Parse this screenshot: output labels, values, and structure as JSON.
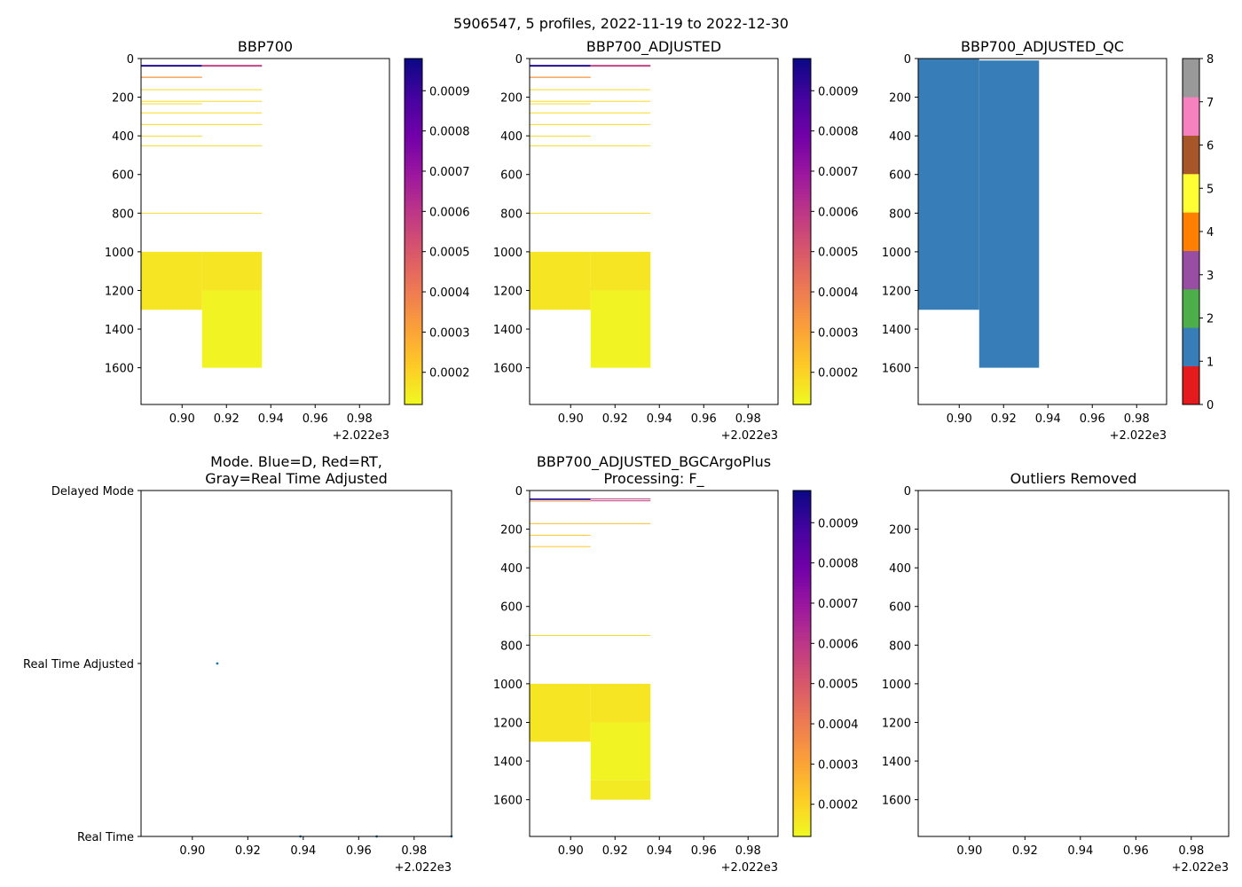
{
  "figure": {
    "suptitle": "5906547, 5 profiles, 2022-11-19 to 2022-12-30"
  },
  "colors": {
    "plasma": [
      "#f0f921",
      "#fdca26",
      "#fb9f3a",
      "#ed7953",
      "#d8576b",
      "#bd3786",
      "#9c179e",
      "#7201a8",
      "#46039f",
      "#0d0887"
    ],
    "qc": [
      "#e41a1c",
      "#377eb8",
      "#4daf4a",
      "#984ea3",
      "#ff7f00",
      "#ffff33",
      "#a65628",
      "#f781bf",
      "#999999"
    ],
    "mode_dot": "#1f77b4"
  },
  "chart_data": [
    {
      "id": "p1",
      "type": "heatmap",
      "title": "BBP700",
      "xlim": [
        0.8815,
        0.9935
      ],
      "ylim": [
        1790,
        0
      ],
      "xticks": [
        0.9,
        0.92,
        0.94,
        0.96,
        0.98
      ],
      "xtick_labels": [
        "0.90",
        "0.92",
        "0.94",
        "0.96",
        "0.98"
      ],
      "yticks": [
        0,
        200,
        400,
        600,
        800,
        1000,
        1200,
        1400,
        1600
      ],
      "ytick_labels": [
        "0",
        "200",
        "400",
        "600",
        "800",
        "1000",
        "1200",
        "1400",
        "1600"
      ],
      "offset_label": "+2.022e3",
      "colorbar": {
        "cmap": "plasma",
        "vmin": 0.00012,
        "vmax": 0.00098,
        "ticks": [
          0.0002,
          0.0003,
          0.0004,
          0.0005,
          0.0006,
          0.0007,
          0.0008,
          0.0009
        ],
        "tick_labels": [
          "0.0002",
          "0.0003",
          "0.0004",
          "0.0005",
          "0.0006",
          "0.0007",
          "0.0008",
          "0.0009"
        ]
      },
      "cells": [
        {
          "x": [
            0.8815,
            0.909
          ],
          "y": [
            1000,
            1300
          ],
          "v": 0.00016
        },
        {
          "x": [
            0.909,
            0.936
          ],
          "y": [
            1000,
            1200
          ],
          "v": 0.00016
        },
        {
          "x": [
            0.909,
            0.936
          ],
          "y": [
            1200,
            1600
          ],
          "v": 0.00013
        },
        {
          "x": [
            0.8815,
            0.909
          ],
          "y": [
            33,
            42
          ],
          "v": 0.00095
        },
        {
          "x": [
            0.909,
            0.936
          ],
          "y": [
            33,
            42
          ],
          "v": 0.00058
        },
        {
          "x": [
            0.8815,
            0.909
          ],
          "y": [
            94,
            100
          ],
          "v": 0.00033
        },
        {
          "x": [
            0.8815,
            0.936
          ],
          "y": [
            159,
            162
          ],
          "v": 0.00018
        },
        {
          "x": [
            0.8815,
            0.936
          ],
          "y": [
            219,
            222
          ],
          "v": 0.00018
        },
        {
          "x": [
            0.8815,
            0.909
          ],
          "y": [
            232,
            235
          ],
          "v": 0.00018
        },
        {
          "x": [
            0.8815,
            0.936
          ],
          "y": [
            279,
            282
          ],
          "v": 0.00018
        },
        {
          "x": [
            0.8815,
            0.936
          ],
          "y": [
            339,
            342
          ],
          "v": 0.00018
        },
        {
          "x": [
            0.8815,
            0.909
          ],
          "y": [
            399,
            402
          ],
          "v": 0.00018
        },
        {
          "x": [
            0.8815,
            0.936
          ],
          "y": [
            449,
            452
          ],
          "v": 0.00018
        },
        {
          "x": [
            0.8815,
            0.936
          ],
          "y": [
            798,
            801
          ],
          "v": 0.00018
        }
      ]
    },
    {
      "id": "p2",
      "type": "heatmap",
      "title": "BBP700_ADJUSTED",
      "xlim": [
        0.8815,
        0.9935
      ],
      "ylim": [
        1790,
        0
      ],
      "xticks": [
        0.9,
        0.92,
        0.94,
        0.96,
        0.98
      ],
      "xtick_labels": [
        "0.90",
        "0.92",
        "0.94",
        "0.96",
        "0.98"
      ],
      "yticks": [
        0,
        200,
        400,
        600,
        800,
        1000,
        1200,
        1400,
        1600
      ],
      "ytick_labels": [
        "0",
        "200",
        "400",
        "600",
        "800",
        "1000",
        "1200",
        "1400",
        "1600"
      ],
      "offset_label": "+2.022e3",
      "colorbar": {
        "cmap": "plasma",
        "vmin": 0.00012,
        "vmax": 0.00098,
        "ticks": [
          0.0002,
          0.0003,
          0.0004,
          0.0005,
          0.0006,
          0.0007,
          0.0008,
          0.0009
        ],
        "tick_labels": [
          "0.0002",
          "0.0003",
          "0.0004",
          "0.0005",
          "0.0006",
          "0.0007",
          "0.0008",
          "0.0009"
        ]
      },
      "cells": [
        {
          "x": [
            0.8815,
            0.909
          ],
          "y": [
            1000,
            1300
          ],
          "v": 0.00016
        },
        {
          "x": [
            0.909,
            0.936
          ],
          "y": [
            1000,
            1200
          ],
          "v": 0.00016
        },
        {
          "x": [
            0.909,
            0.936
          ],
          "y": [
            1200,
            1600
          ],
          "v": 0.00013
        },
        {
          "x": [
            0.8815,
            0.909
          ],
          "y": [
            33,
            42
          ],
          "v": 0.00095
        },
        {
          "x": [
            0.909,
            0.936
          ],
          "y": [
            33,
            42
          ],
          "v": 0.00058
        },
        {
          "x": [
            0.8815,
            0.909
          ],
          "y": [
            94,
            100
          ],
          "v": 0.00033
        },
        {
          "x": [
            0.8815,
            0.936
          ],
          "y": [
            159,
            162
          ],
          "v": 0.00018
        },
        {
          "x": [
            0.8815,
            0.936
          ],
          "y": [
            219,
            222
          ],
          "v": 0.00018
        },
        {
          "x": [
            0.8815,
            0.909
          ],
          "y": [
            232,
            235
          ],
          "v": 0.00018
        },
        {
          "x": [
            0.8815,
            0.936
          ],
          "y": [
            279,
            282
          ],
          "v": 0.00018
        },
        {
          "x": [
            0.8815,
            0.936
          ],
          "y": [
            339,
            342
          ],
          "v": 0.00018
        },
        {
          "x": [
            0.8815,
            0.909
          ],
          "y": [
            399,
            402
          ],
          "v": 0.00018
        },
        {
          "x": [
            0.8815,
            0.936
          ],
          "y": [
            449,
            452
          ],
          "v": 0.00018
        },
        {
          "x": [
            0.8815,
            0.936
          ],
          "y": [
            798,
            801
          ],
          "v": 0.00018
        }
      ]
    },
    {
      "id": "p3",
      "type": "heatmap",
      "title": "BBP700_ADJUSTED_QC",
      "xlim": [
        0.8815,
        0.9935
      ],
      "ylim": [
        1790,
        0
      ],
      "xticks": [
        0.9,
        0.92,
        0.94,
        0.96,
        0.98
      ],
      "xtick_labels": [
        "0.90",
        "0.92",
        "0.94",
        "0.96",
        "0.98"
      ],
      "yticks": [
        0,
        200,
        400,
        600,
        800,
        1000,
        1200,
        1400,
        1600
      ],
      "ytick_labels": [
        "0",
        "200",
        "400",
        "600",
        "800",
        "1000",
        "1200",
        "1400",
        "1600"
      ],
      "offset_label": "+2.022e3",
      "colorbar": {
        "cmap": "qc",
        "vmin": 0,
        "vmax": 8,
        "ticks": [
          0,
          1,
          2,
          3,
          4,
          5,
          6,
          7,
          8
        ],
        "tick_labels": [
          "0",
          "1",
          "2",
          "3",
          "4",
          "5",
          "6",
          "7",
          "8"
        ]
      },
      "cells": [
        {
          "x": [
            0.8815,
            0.909
          ],
          "y": [
            0,
            1300
          ],
          "qc": 1
        },
        {
          "x": [
            0.909,
            0.936
          ],
          "y": [
            10,
            1600
          ],
          "qc": 1
        }
      ]
    },
    {
      "id": "p4",
      "type": "scatter",
      "title": [
        "Mode. Blue=D, Red=RT,",
        "Gray=Real Time Adjusted"
      ],
      "xlim": [
        0.8815,
        0.9935
      ],
      "ylim": [
        0,
        2
      ],
      "xticks": [
        0.9,
        0.92,
        0.94,
        0.96,
        0.98
      ],
      "xtick_labels": [
        "0.90",
        "0.92",
        "0.94",
        "0.96",
        "0.98"
      ],
      "yticks": [
        0,
        1,
        2
      ],
      "ytick_labels": [
        "Real Time",
        "Real Time Adjusted",
        "Delayed Mode"
      ],
      "offset_label": "+2.022e3",
      "points": [
        {
          "x": 0.909,
          "y": 1
        },
        {
          "x": 0.939,
          "y": 0
        },
        {
          "x": 0.9665,
          "y": 0
        },
        {
          "x": 0.9935,
          "y": 0
        }
      ]
    },
    {
      "id": "p5",
      "type": "heatmap",
      "title": [
        "BBP700_ADJUSTED_BGCArgoPlus",
        "Processing: F_"
      ],
      "xlim": [
        0.8815,
        0.9935
      ],
      "ylim": [
        1790,
        0
      ],
      "xticks": [
        0.9,
        0.92,
        0.94,
        0.96,
        0.98
      ],
      "xtick_labels": [
        "0.90",
        "0.92",
        "0.94",
        "0.96",
        "0.98"
      ],
      "yticks": [
        0,
        200,
        400,
        600,
        800,
        1000,
        1200,
        1400,
        1600
      ],
      "ytick_labels": [
        "0",
        "200",
        "400",
        "600",
        "800",
        "1000",
        "1200",
        "1400",
        "1600"
      ],
      "offset_label": "+2.022e3",
      "colorbar": {
        "cmap": "plasma",
        "vmin": 0.00012,
        "vmax": 0.00098,
        "ticks": [
          0.0002,
          0.0003,
          0.0004,
          0.0005,
          0.0006,
          0.0007,
          0.0008,
          0.0009
        ],
        "tick_labels": [
          "0.0002",
          "0.0003",
          "0.0004",
          "0.0005",
          "0.0006",
          "0.0007",
          "0.0008",
          "0.0009"
        ]
      },
      "cells": [
        {
          "x": [
            0.8815,
            0.909
          ],
          "y": [
            1000,
            1300
          ],
          "v": 0.00016
        },
        {
          "x": [
            0.909,
            0.936
          ],
          "y": [
            1000,
            1200
          ],
          "v": 0.00016
        },
        {
          "x": [
            0.909,
            0.936
          ],
          "y": [
            1200,
            1500
          ],
          "v": 0.00013
        },
        {
          "x": [
            0.909,
            0.936
          ],
          "y": [
            1500,
            1600
          ],
          "v": 0.00015
        },
        {
          "x": [
            0.8815,
            0.909
          ],
          "y": [
            41,
            49
          ],
          "v": 0.00095
        },
        {
          "x": [
            0.909,
            0.936
          ],
          "y": [
            41,
            45
          ],
          "v": 0.00058
        },
        {
          "x": [
            0.909,
            0.936
          ],
          "y": [
            51,
            55
          ],
          "v": 0.00058
        },
        {
          "x": [
            0.8815,
            0.909
          ],
          "y": [
            53,
            56
          ],
          "v": 0.00033
        },
        {
          "x": [
            0.8815,
            0.936
          ],
          "y": [
            169,
            172
          ],
          "v": 0.00025
        },
        {
          "x": [
            0.8815,
            0.909
          ],
          "y": [
            229,
            232
          ],
          "v": 0.00022
        },
        {
          "x": [
            0.8815,
            0.909
          ],
          "y": [
            288,
            291
          ],
          "v": 0.00022
        },
        {
          "x": [
            0.8815,
            0.936
          ],
          "y": [
            748,
            751
          ],
          "v": 0.00018
        }
      ]
    },
    {
      "id": "p6",
      "type": "heatmap",
      "title": "Outliers Removed",
      "xlim": [
        0.8815,
        0.9935
      ],
      "ylim": [
        1790,
        0
      ],
      "xticks": [
        0.9,
        0.92,
        0.94,
        0.96,
        0.98
      ],
      "xtick_labels": [
        "0.90",
        "0.92",
        "0.94",
        "0.96",
        "0.98"
      ],
      "yticks": [
        0,
        200,
        400,
        600,
        800,
        1000,
        1200,
        1400,
        1600
      ],
      "ytick_labels": [
        "0",
        "200",
        "400",
        "600",
        "800",
        "1000",
        "1200",
        "1400",
        "1600"
      ],
      "offset_label": "+2.022e3",
      "cells": []
    }
  ]
}
